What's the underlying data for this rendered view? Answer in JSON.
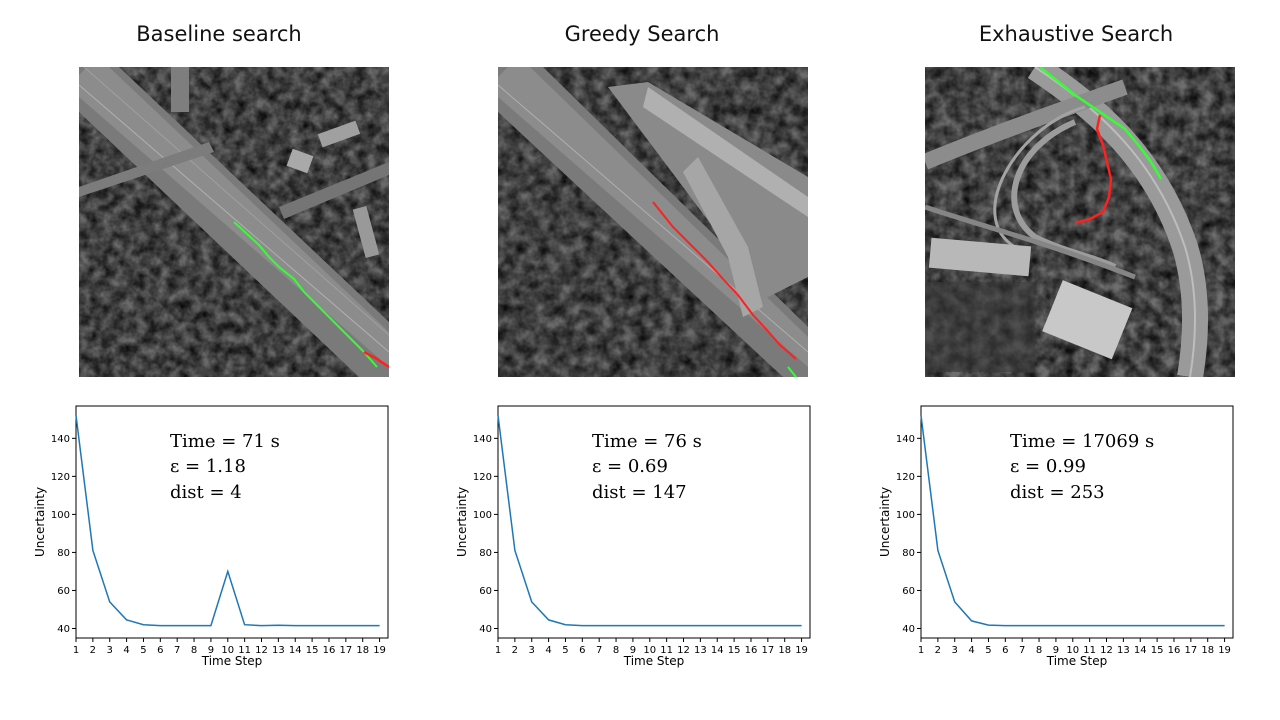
{
  "panels": [
    {
      "title": "Baseline search",
      "time": "Time =  71 s",
      "eps": "ε = 1.18",
      "dist": "dist = 4"
    },
    {
      "title": "Greedy Search",
      "time": "Time =  76 s",
      "eps": "ε =  0.69",
      "dist": "dist =  147"
    },
    {
      "title": "Exhaustive Search",
      "time": "Time =  17069 s",
      "eps": "ε = 0.99",
      "dist": "dist = 253"
    }
  ],
  "colors": {
    "line": "#1f77b4",
    "green_track": "#33ff33",
    "red_track": "#ff2020"
  },
  "chart_data": [
    {
      "type": "line",
      "xlabel": "Time Step",
      "ylabel": "Uncertainty",
      "x": [
        1,
        2,
        3,
        4,
        5,
        6,
        7,
        8,
        9,
        10,
        11,
        12,
        13,
        14,
        15,
        16,
        17,
        18,
        19
      ],
      "values": [
        152,
        81,
        54,
        44.5,
        42,
        41.5,
        41.5,
        41.5,
        41.5,
        70,
        42,
        41.5,
        41.7,
        41.5,
        41.5,
        41.5,
        41.5,
        41.5,
        41.5
      ],
      "xlim": [
        1,
        19.5
      ],
      "ylim": [
        35,
        157
      ],
      "xticks": [
        1,
        2,
        3,
        4,
        5,
        6,
        7,
        8,
        9,
        10,
        11,
        12,
        13,
        14,
        15,
        16,
        17,
        18,
        19
      ],
      "yticks": [
        40,
        60,
        80,
        100,
        120,
        140
      ],
      "grid": false
    },
    {
      "type": "line",
      "xlabel": "Time Step",
      "ylabel": "Uncertainty",
      "x": [
        1,
        2,
        3,
        4,
        5,
        6,
        7,
        8,
        9,
        10,
        11,
        12,
        13,
        14,
        15,
        16,
        17,
        18,
        19
      ],
      "values": [
        152,
        81,
        54,
        44.5,
        42,
        41.5,
        41.5,
        41.5,
        41.5,
        41.5,
        41.5,
        41.5,
        41.5,
        41.5,
        41.5,
        41.5,
        41.5,
        41.5,
        41.5
      ],
      "xlim": [
        1,
        19.5
      ],
      "ylim": [
        35,
        157
      ],
      "xticks": [
        1,
        2,
        3,
        4,
        5,
        6,
        7,
        8,
        9,
        10,
        11,
        12,
        13,
        14,
        15,
        16,
        17,
        18,
        19
      ],
      "yticks": [
        40,
        60,
        80,
        100,
        120,
        140
      ],
      "grid": false
    },
    {
      "type": "line",
      "xlabel": "Time Step",
      "ylabel": "Uncertainty",
      "x": [
        1,
        2,
        3,
        4,
        5,
        6,
        7,
        8,
        9,
        10,
        11,
        12,
        13,
        14,
        15,
        16,
        17,
        18,
        19
      ],
      "values": [
        152,
        81,
        54,
        44,
        41.8,
        41.5,
        41.5,
        41.5,
        41.5,
        41.5,
        41.5,
        41.5,
        41.5,
        41.5,
        41.5,
        41.5,
        41.5,
        41.5,
        41.5
      ],
      "xlim": [
        1,
        19.5
      ],
      "ylim": [
        35,
        157
      ],
      "xticks": [
        1,
        2,
        3,
        4,
        5,
        6,
        7,
        8,
        9,
        10,
        11,
        12,
        13,
        14,
        15,
        16,
        17,
        18,
        19
      ],
      "yticks": [
        40,
        60,
        80,
        100,
        120,
        140
      ],
      "grid": false
    }
  ]
}
